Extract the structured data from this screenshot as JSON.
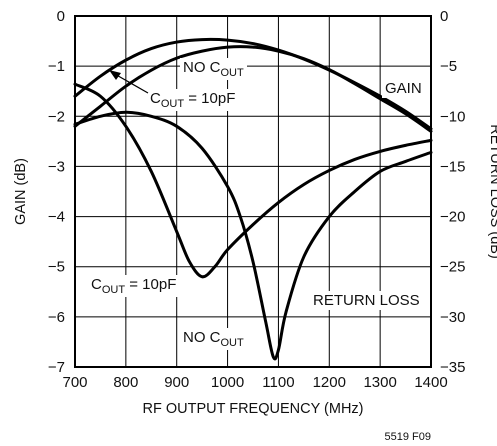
{
  "chart_data": {
    "type": "line",
    "xlabel": "RF OUTPUT FREQUENCY (MHz)",
    "ylabel": "GAIN (dB)",
    "y2label": "RETURN LOSS (dB)",
    "xlim": [
      700,
      1400
    ],
    "ylim": [
      -7,
      0
    ],
    "y2lim": [
      -35,
      0
    ],
    "x_ticks": [
      700,
      800,
      900,
      1000,
      1100,
      1200,
      1300,
      1400
    ],
    "y_ticks": [
      0,
      -1,
      -2,
      -3,
      -4,
      -5,
      -6,
      -7
    ],
    "y2_ticks": [
      0,
      -5,
      -10,
      -15,
      -20,
      -25,
      -30,
      -35
    ],
    "y_tick_labels": [
      "0",
      "−1",
      "−2",
      "−3",
      "−4",
      "−5",
      "−6",
      "−7"
    ],
    "y2_tick_labels": [
      "0",
      "−5",
      "−10",
      "−15",
      "−20",
      "−25",
      "−30",
      "−35"
    ],
    "grid": true,
    "series": [
      {
        "axis": "left",
        "x": [
          700,
          750,
          800,
          850,
          900,
          950,
          1000,
          1050,
          1100,
          1150,
          1200,
          1250,
          1300,
          1350,
          1400
        ],
        "y": [
          -1.6,
          -1.2,
          -0.88,
          -0.65,
          -0.52,
          -0.47,
          -0.48,
          -0.55,
          -0.68,
          -0.86,
          -1.08,
          -1.33,
          -1.6,
          -1.9,
          -2.25
        ]
      },
      {
        "axis": "left",
        "x": [
          700,
          750,
          800,
          850,
          900,
          950,
          1000,
          1050,
          1100,
          1150,
          1200,
          1250,
          1300,
          1350,
          1400
        ],
        "y": [
          -2.2,
          -1.8,
          -1.4,
          -1.08,
          -0.84,
          -0.7,
          -0.62,
          -0.62,
          -0.7,
          -0.85,
          -1.07,
          -1.35,
          -1.65,
          -1.95,
          -2.3
        ]
      },
      {
        "axis": "right",
        "x": [
          700,
          750,
          800,
          850,
          900,
          925,
          950,
          975,
          1000,
          1050,
          1100,
          1150,
          1200,
          1250,
          1300,
          1350,
          1400
        ],
        "y": [
          -6.8,
          -8,
          -11,
          -15.5,
          -21.5,
          -24.5,
          -26,
          -25,
          -23.3,
          -20.8,
          -18.6,
          -16.8,
          -15.4,
          -14.3,
          -13.5,
          -12.9,
          -12.4
        ]
      },
      {
        "axis": "right",
        "x": [
          700,
          750,
          800,
          850,
          900,
          950,
          1000,
          1025,
          1050,
          1075,
          1090,
          1100,
          1115,
          1150,
          1200,
          1250,
          1300,
          1350,
          1400
        ],
        "y": [
          -10.8,
          -10,
          -9.6,
          -10,
          -11,
          -13.2,
          -17,
          -20,
          -24.5,
          -30.5,
          -34,
          -33.3,
          -29.5,
          -24,
          -20,
          -17.5,
          -15.5,
          -14.5,
          -13.6
        ]
      }
    ],
    "annotations": {
      "gain": "GAIN",
      "return_loss": "RETURN LOSS",
      "no_cout_gain": {
        "main": "NO C",
        "sub": "OUT"
      },
      "cout_gain": {
        "main": "C",
        "sub": "OUT",
        "suffix": " = 10pF"
      },
      "cout_rl": {
        "main": "C",
        "sub": "OUT",
        "suffix": " = 10pF"
      },
      "no_cout_rl": {
        "main": "NO C",
        "sub": "OUT"
      }
    },
    "figure_id": "5519 F09"
  }
}
